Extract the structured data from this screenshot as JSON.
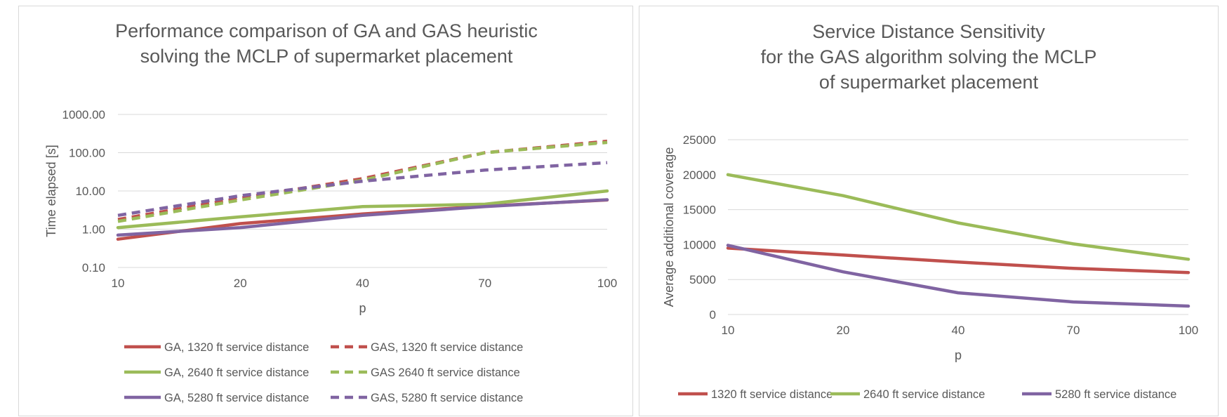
{
  "charts": [
    {
      "type": "line",
      "title": [
        "Performance comparison of GA and GAS heuristic",
        "solving the MCLP of supermarket placement"
      ],
      "xlabel": "p",
      "ylabel": "Time elapsed [s]",
      "x_scale": "category",
      "y_scale": "log",
      "categories": [
        "10",
        "20",
        "40",
        "70",
        "100"
      ],
      "y_ticks": [
        "0.10",
        "1.00",
        "10.00",
        "100.00",
        "1000.00"
      ],
      "ylim": [
        0.1,
        1000
      ],
      "grid": true,
      "legend_position": "bottom",
      "series": [
        {
          "name": "GA, 1320 ft service distance",
          "values": [
            0.55,
            1.4,
            2.5,
            4.0,
            5.8
          ],
          "color": "#c0504d",
          "dash": false
        },
        {
          "name": "GAS, 1320 ft service distance",
          "values": [
            1.8,
            6.5,
            21,
            100,
            200
          ],
          "color": "#c0504d",
          "dash": true
        },
        {
          "name": "GA, 2640 ft service distance",
          "values": [
            1.1,
            2.1,
            3.9,
            4.5,
            10
          ],
          "color": "#9bbb59",
          "dash": false
        },
        {
          "name": "GAS 2640 ft service distance",
          "values": [
            1.6,
            5.8,
            19,
            100,
            185
          ],
          "color": "#9bbb59",
          "dash": true
        },
        {
          "name": "GA, 5280 ft service distance",
          "values": [
            0.7,
            1.1,
            2.3,
            3.9,
            5.9
          ],
          "color": "#8064a2",
          "dash": false
        },
        {
          "name": "GAS, 5280 ft service distance",
          "values": [
            2.3,
            7.5,
            18,
            35,
            55
          ],
          "color": "#8064a2",
          "dash": true
        }
      ]
    },
    {
      "type": "line",
      "title": [
        "Service Distance Sensitivity",
        "for the GAS algorithm solving the MCLP",
        "of supermarket placement"
      ],
      "xlabel": "p",
      "ylabel": "Average additional coverage",
      "x_scale": "category",
      "y_scale": "linear",
      "categories": [
        "10",
        "20",
        "40",
        "70",
        "100"
      ],
      "y_ticks": [
        "0",
        "5000",
        "10000",
        "15000",
        "20000",
        "25000"
      ],
      "ylim": [
        0,
        25000
      ],
      "grid": true,
      "legend_position": "bottom",
      "series": [
        {
          "name": "1320 ft service distance",
          "values": [
            9500,
            8500,
            7500,
            6600,
            6000
          ],
          "color": "#c0504d",
          "dash": false
        },
        {
          "name": "2640 ft service distance",
          "values": [
            20000,
            17000,
            13100,
            10100,
            7900
          ],
          "color": "#9bbb59",
          "dash": false
        },
        {
          "name": "5280 ft service distance",
          "values": [
            9900,
            6100,
            3100,
            1800,
            1200
          ],
          "color": "#8064a2",
          "dash": false
        }
      ]
    }
  ]
}
